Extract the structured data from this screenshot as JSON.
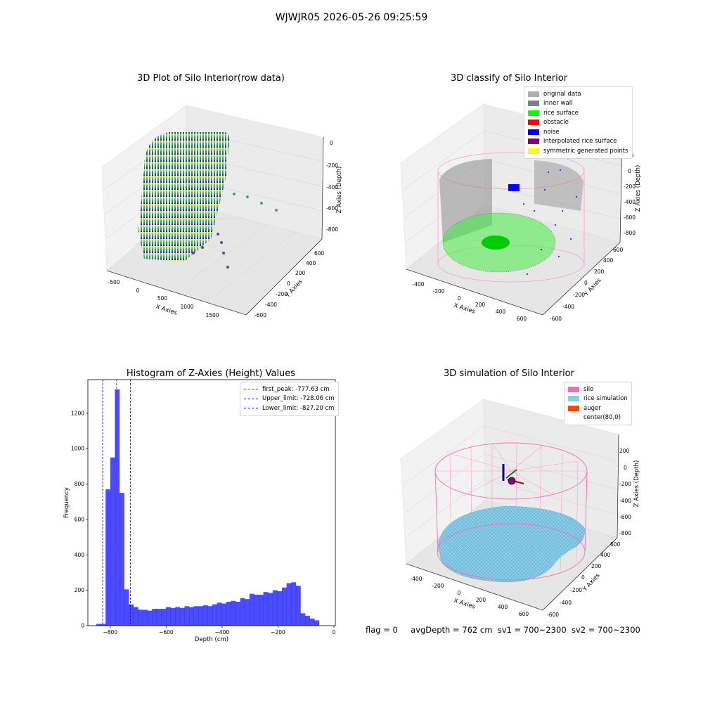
{
  "suptitle": "WJWJR05 2026-05-26 09:25:59",
  "panels": {
    "raw": {
      "title": "3D Plot of Silo Interior(row data)",
      "xlabel": "X Axies",
      "ylabel": "Y Axies",
      "zlabel": "Z Axies (Depth)",
      "xticks": [
        "-500",
        "0",
        "500",
        "1000",
        "1500"
      ],
      "yticks": [
        "600",
        "400",
        "200",
        "0",
        "-200",
        "-400",
        "-600"
      ],
      "zticks": [
        "0",
        "-200",
        "-400",
        "-600",
        "-800"
      ]
    },
    "classify": {
      "title": "3D classify of Silo Interior",
      "xlabel": "X Axies",
      "ylabel": "Y Axies",
      "zlabel": "Z Axies (Depth)",
      "xticks": [
        "-400",
        "-200",
        "0",
        "200",
        "400",
        "600"
      ],
      "yticks": [
        "600",
        "400",
        "200",
        "0",
        "-200",
        "-400",
        "-600"
      ],
      "zticks": [
        "200",
        "0",
        "-200",
        "-400",
        "-600",
        "-800"
      ],
      "legend": [
        {
          "label": "original data",
          "color": "#b0b0b0"
        },
        {
          "label": "inner wall",
          "color": "#808080"
        },
        {
          "label": "rice surface",
          "color": "#00ff00"
        },
        {
          "label": "obstacle",
          "color": "#ff0000"
        },
        {
          "label": "noise",
          "color": "#0000ff"
        },
        {
          "label": "interpolated rice surface",
          "color": "#800080"
        },
        {
          "label": "symmetric generated points",
          "color": "#ffff00"
        }
      ]
    },
    "simulation": {
      "title": "3D simulation of Silo Interior",
      "xlabel": "X Axies",
      "ylabel": "Y Axies",
      "zlabel": "Z Axies (Depth)",
      "xticks": [
        "-400",
        "-200",
        "0",
        "200",
        "400",
        "600"
      ],
      "yticks": [
        "600",
        "400",
        "200",
        "0",
        "-200",
        "-400",
        "-600"
      ],
      "zticks": [
        "200",
        "0",
        "-200",
        "-400",
        "-600",
        "-800"
      ],
      "legend": [
        {
          "label": "silo",
          "color": "#ff69b4"
        },
        {
          "label": "rice simulation",
          "color": "#87ceeb"
        },
        {
          "label": "auger",
          "color": "#ff4500"
        },
        {
          "label": "center(80,0)",
          "color": "#ffffff"
        }
      ]
    }
  },
  "chart_data": {
    "type": "bar",
    "title": "Histogram of Z-Axies (Height) Values",
    "xlabel": "Depth (cm)",
    "ylabel": "Frequency",
    "xlim": [
      -880,
      5
    ],
    "ylim": [
      0,
      1390
    ],
    "xticks": [
      -800,
      -600,
      -400,
      -200,
      0
    ],
    "yticks": [
      0,
      200,
      400,
      600,
      800,
      1000,
      1200
    ],
    "bin_start": -850,
    "bin_width": 16.6,
    "values": [
      10,
      10,
      770,
      950,
      1335,
      750,
      205,
      120,
      105,
      90,
      90,
      85,
      95,
      95,
      95,
      105,
      100,
      105,
      100,
      110,
      105,
      110,
      110,
      115,
      110,
      120,
      130,
      125,
      135,
      140,
      135,
      155,
      150,
      180,
      175,
      175,
      190,
      185,
      200,
      195,
      215,
      240,
      245,
      225,
      70,
      55,
      40,
      30
    ],
    "bar_color": "#0000ff",
    "vlines": [
      {
        "label": "first_peak: -777.63 cm",
        "x": -777.63,
        "color": "#ff0000"
      },
      {
        "label": "Upper_limit: -728.06 cm",
        "x": -728.06,
        "color": "#0000ff"
      },
      {
        "label": "Lower_limit: -827.20 cm",
        "x": -827.2,
        "color": "#0000ff"
      }
    ],
    "legend_position": "top-right"
  },
  "footer": {
    "flag": "flag = 0",
    "avg": "avgDepth = 762 cm",
    "sv1": "sv1 = 700~2300",
    "sv2": "sv2 = 700~2300"
  }
}
